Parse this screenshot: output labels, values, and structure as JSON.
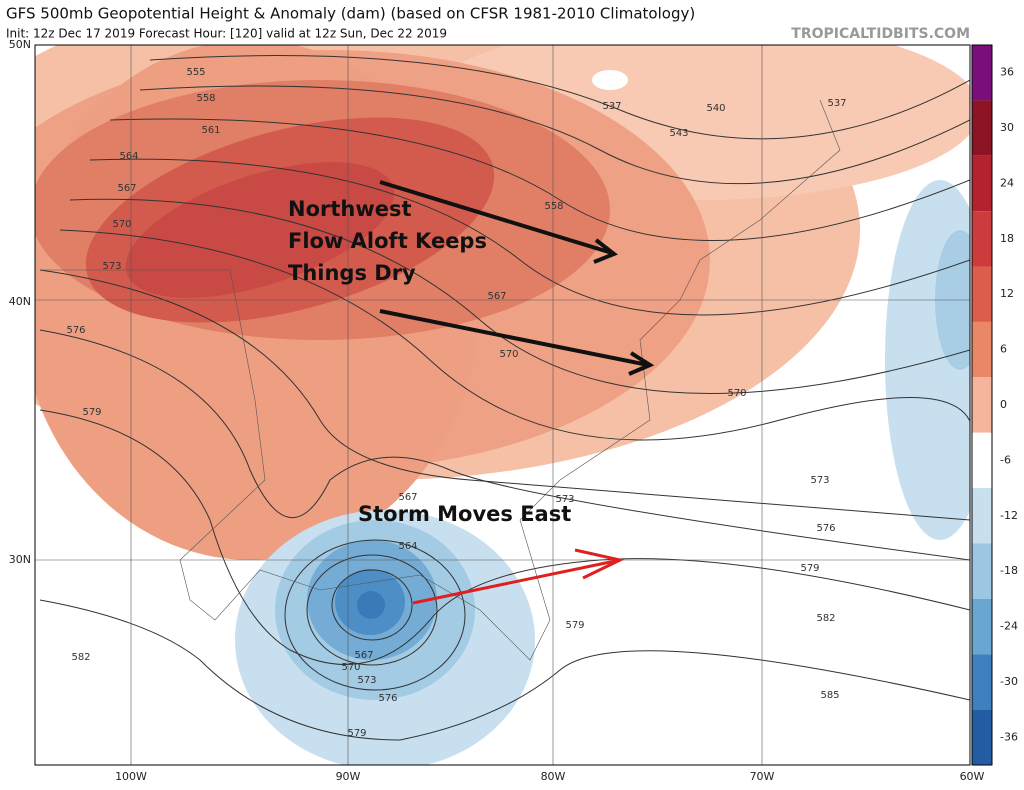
{
  "header": {
    "title": "GFS 500mb Geopotential Height & Anomaly (dam) (based on CFSR 1981-2010 Climatology)",
    "subtitle": "Init: 12z Dec 17 2019   Forecast Hour: [120]   valid at 12z Sun, Dec 22 2019",
    "watermark": "TROPICALTIDBITS.COM"
  },
  "axes": {
    "latitudes": [
      "50N",
      "40N",
      "30N"
    ],
    "longitudes": [
      "100W",
      "90W",
      "80W",
      "70W",
      "60W"
    ]
  },
  "colorbar": {
    "ticks": [
      36,
      30,
      24,
      18,
      12,
      6,
      0,
      -6,
      -12,
      -18,
      -24,
      -30,
      -36
    ],
    "colors": [
      "#7a0f7c",
      "#8c1424",
      "#b3232f",
      "#cd3c3c",
      "#dc5d4b",
      "#e98766",
      "#f5b59c",
      "#ffffff",
      "#c8dfee",
      "#9cc6e2",
      "#6aa6d2",
      "#3d80bf",
      "#235ca3"
    ]
  },
  "contour_labels": [
    555,
    558,
    561,
    564,
    567,
    570,
    573,
    576,
    579,
    582,
    537,
    540,
    543,
    537,
    558,
    567,
    570,
    570,
    573,
    567,
    564,
    573,
    576,
    579,
    582,
    585,
    579,
    567,
    570,
    573,
    576,
    579
  ],
  "annotations": {
    "northwest": [
      "Northwest",
      "Flow Aloft Keeps",
      "Things Dry"
    ],
    "storm": "Storm Moves East"
  }
}
